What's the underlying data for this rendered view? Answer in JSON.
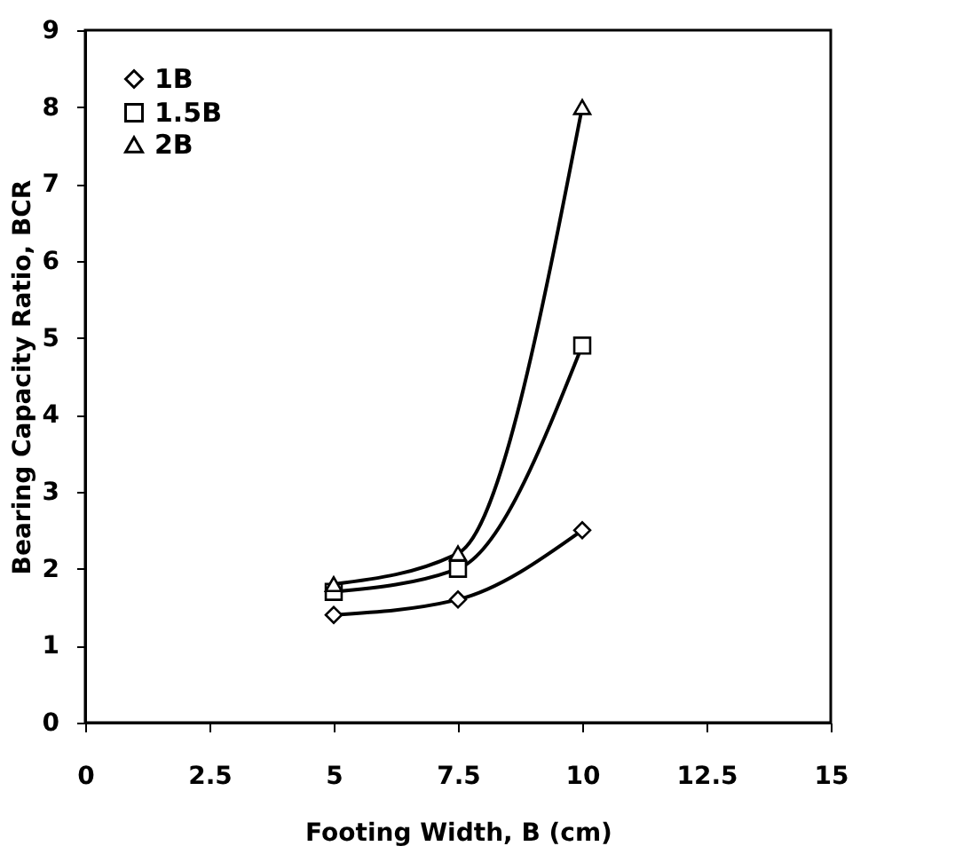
{
  "chart_data": {
    "type": "line",
    "xlabel": "Footing Width, B (cm)",
    "ylabel": "Bearing Capacity Ratio, BCR",
    "x": [
      5,
      7.5,
      10
    ],
    "series": [
      {
        "name": "1B",
        "color": "#000000",
        "marker": "diamond",
        "values": [
          1.4,
          1.6,
          2.5
        ]
      },
      {
        "name": "1.5B",
        "color": "#000000",
        "marker": "square",
        "values": [
          1.7,
          2.0,
          4.9
        ]
      },
      {
        "name": "2B",
        "color": "#000000",
        "marker": "triangle",
        "values": [
          1.8,
          2.2,
          8.0
        ]
      }
    ],
    "xlim": [
      0,
      15
    ],
    "xticks": [
      0,
      2.5,
      5,
      7.5,
      10,
      12.5,
      15
    ],
    "ylim": [
      0,
      9
    ],
    "yticks": [
      0,
      1,
      2,
      3,
      4,
      5,
      6,
      7,
      8,
      9
    ],
    "grid": false,
    "legend": "top left",
    "line_style": "solid"
  }
}
